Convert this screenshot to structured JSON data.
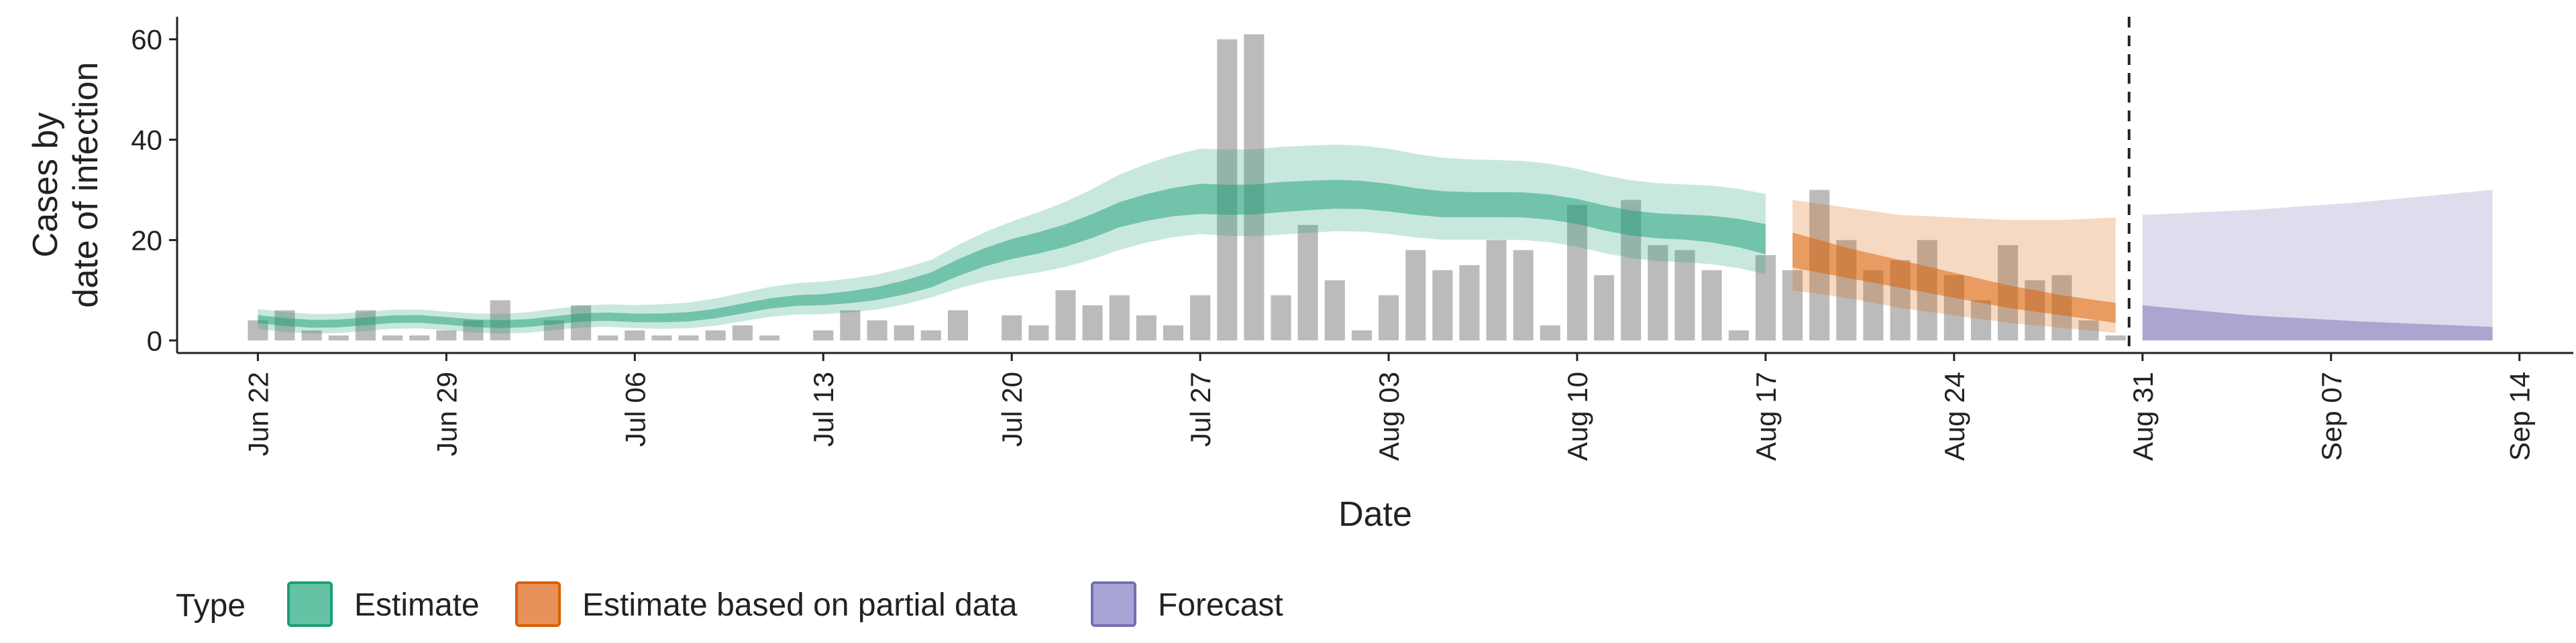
{
  "chart_data": {
    "type": "area",
    "xlabel": "Date",
    "ylabel_lines": [
      "Cases by",
      "date of infection"
    ],
    "x_start": "2020-06-19",
    "x_end": "2020-09-16",
    "ylim": [
      -2.5,
      64.5
    ],
    "y_ticks": [
      0,
      20,
      40,
      60
    ],
    "x_ticks": [
      {
        "date": "2020-06-22",
        "label": "Jun 22"
      },
      {
        "date": "2020-06-29",
        "label": "Jun 29"
      },
      {
        "date": "2020-07-06",
        "label": "Jul 06"
      },
      {
        "date": "2020-07-13",
        "label": "Jul 13"
      },
      {
        "date": "2020-07-20",
        "label": "Jul 20"
      },
      {
        "date": "2020-07-27",
        "label": "Jul 27"
      },
      {
        "date": "2020-08-03",
        "label": "Aug 03"
      },
      {
        "date": "2020-08-10",
        "label": "Aug 10"
      },
      {
        "date": "2020-08-17",
        "label": "Aug 17"
      },
      {
        "date": "2020-08-24",
        "label": "Aug 24"
      },
      {
        "date": "2020-08-31",
        "label": "Aug 31"
      },
      {
        "date": "2020-09-07",
        "label": "Sep 07"
      },
      {
        "date": "2020-09-14",
        "label": "Sep 14"
      }
    ],
    "forecast_date": "2020-08-30",
    "grid": false,
    "legend_position": "bottom",
    "reported_cases": {
      "start": "2020-06-19",
      "values": [
        0,
        0,
        0,
        4,
        6,
        2,
        1,
        6,
        1,
        1,
        2,
        4,
        8,
        0,
        4,
        7,
        1,
        2,
        1,
        1,
        2,
        3,
        1,
        0,
        2,
        6,
        4,
        3,
        2,
        6,
        0,
        5,
        3,
        10,
        7,
        9,
        5,
        3,
        9,
        60,
        61,
        9,
        23,
        12,
        2,
        9,
        18,
        14,
        15,
        20,
        18,
        3,
        27,
        13,
        28,
        19,
        18,
        14,
        2,
        17,
        14,
        30,
        20,
        14,
        16,
        20,
        13,
        8,
        19,
        12,
        13,
        4,
        1
      ]
    },
    "series": [
      {
        "name": "Estimate",
        "color": "#1b9e77",
        "start": "2020-06-22",
        "end": "2020-08-17",
        "key_points": [
          {
            "date": "2020-06-22",
            "lower90": 2,
            "lower50": 3.2,
            "upper50": 4.8,
            "upper90": 6
          },
          {
            "date": "2020-06-29",
            "lower90": 1.8,
            "lower50": 2.9,
            "upper50": 4.4,
            "upper90": 5.5
          },
          {
            "date": "2020-07-06",
            "lower90": 2.2,
            "lower50": 3.4,
            "upper50": 5.1,
            "upper90": 6.8
          },
          {
            "date": "2020-07-13",
            "lower90": 5,
            "lower50": 6.8,
            "upper50": 9,
            "upper90": 11.5
          },
          {
            "date": "2020-07-17",
            "lower90": 8.5,
            "lower50": 10.5,
            "upper50": 13.5,
            "upper90": 16
          },
          {
            "date": "2020-07-20",
            "lower90": 12.5,
            "lower50": 16,
            "upper50": 20,
            "upper90": 23.5
          },
          {
            "date": "2020-07-24",
            "lower90": 18,
            "lower50": 22.5,
            "upper50": 27.5,
            "upper90": 33
          },
          {
            "date": "2020-07-27",
            "lower90": 21,
            "lower50": 25,
            "upper50": 31,
            "upper90": 38
          },
          {
            "date": "2020-07-30",
            "lower90": 21.5,
            "lower50": 26,
            "upper50": 32,
            "upper90": 39
          },
          {
            "date": "2020-08-03",
            "lower90": 21,
            "lower50": 25.5,
            "upper50": 31,
            "upper90": 38
          },
          {
            "date": "2020-08-06",
            "lower90": 20.5,
            "lower50": 25,
            "upper50": 30,
            "upper90": 36.5
          },
          {
            "date": "2020-08-10",
            "lower90": 18.5,
            "lower50": 23,
            "upper50": 28,
            "upper90": 34
          },
          {
            "date": "2020-08-14",
            "lower90": 15.5,
            "lower50": 20,
            "upper50": 25,
            "upper90": 31
          },
          {
            "date": "2020-08-17",
            "lower90": 13,
            "lower50": 17,
            "upper50": 23,
            "upper90": 29
          }
        ]
      },
      {
        "name": "Estimate based on partial data",
        "color": "#d95f02",
        "start": "2020-08-18",
        "end": "2020-08-30",
        "key_points": [
          {
            "date": "2020-08-18",
            "lower90": 10,
            "lower50": 14.5,
            "upper50": 21.5,
            "upper90": 28
          },
          {
            "date": "2020-08-20",
            "lower90": 8.5,
            "lower50": 12.5,
            "upper50": 18.5,
            "upper90": 26.5
          },
          {
            "date": "2020-08-22",
            "lower90": 6.5,
            "lower50": 10.5,
            "upper50": 16,
            "upper90": 25
          },
          {
            "date": "2020-08-24",
            "lower90": 5,
            "lower50": 8.5,
            "upper50": 13.5,
            "upper90": 24.5
          },
          {
            "date": "2020-08-26",
            "lower90": 3.5,
            "lower50": 6.5,
            "upper50": 11,
            "upper90": 24
          },
          {
            "date": "2020-08-28",
            "lower90": 2.5,
            "lower50": 5,
            "upper50": 9,
            "upper90": 24
          },
          {
            "date": "2020-08-30",
            "lower90": 1.5,
            "lower50": 3.5,
            "upper50": 7.5,
            "upper90": 24.5
          }
        ]
      },
      {
        "name": "Forecast",
        "color": "#7570b3",
        "start": "2020-08-31",
        "end": "2020-09-13",
        "key_points": [
          {
            "date": "2020-08-31",
            "lower90": 0,
            "lower50": 0,
            "upper50": 7,
            "upper90": 25
          },
          {
            "date": "2020-09-04",
            "lower90": 0,
            "lower50": 0,
            "upper50": 5,
            "upper90": 26
          },
          {
            "date": "2020-09-08",
            "lower90": 0,
            "lower50": 0,
            "upper50": 3.8,
            "upper90": 27.5
          },
          {
            "date": "2020-09-13",
            "lower90": 0,
            "lower50": 0,
            "upper50": 2.7,
            "upper90": 30
          }
        ]
      }
    ],
    "legend": {
      "title": "Type",
      "items": [
        {
          "label": "Estimate",
          "fill": "#66c2a5",
          "border": "#1b9e77"
        },
        {
          "label": "Estimate based on partial data",
          "fill": "#e8915a",
          "border": "#d95f02"
        },
        {
          "label": "Forecast",
          "fill": "#a8a4d6",
          "border": "#7570b3"
        }
      ]
    }
  }
}
